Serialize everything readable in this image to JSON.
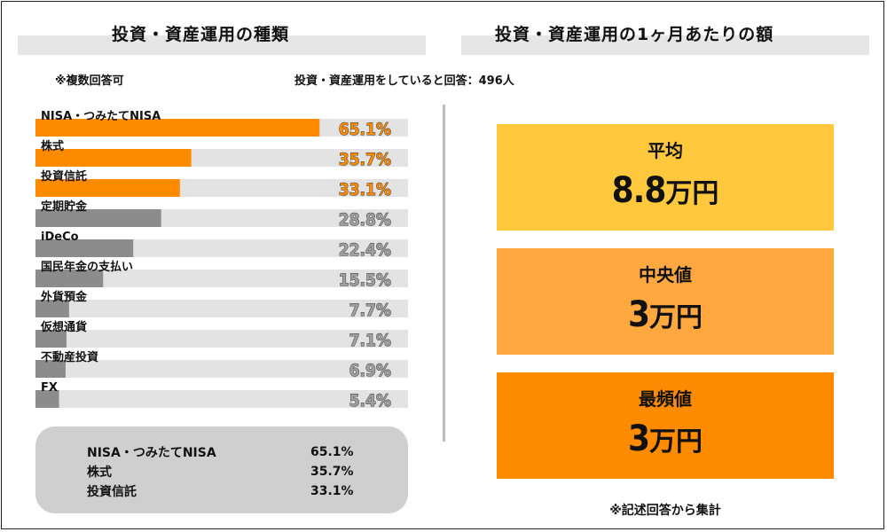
{
  "left_section": {
    "title": "投資・資産運用の種類"
  },
  "right_section": {
    "title": "投資・資産運用の1ヶ月あたりの額"
  },
  "notes": {
    "multiple_answers": "※複数回答可",
    "respondents": "投資・資産運用をしていると回答：496人",
    "footnote": "※記述回答から集計"
  },
  "colors": {
    "highlight_bar": "#ff8c00",
    "other_bar": "#8c8c8c",
    "track": "#e3e3e3",
    "highlight_value": "#ff8c00",
    "other_value": "#a0a0a0",
    "mean_box": "#ffc83d",
    "median_box": "#ffa840",
    "mode_box": "#ff8c00"
  },
  "chart_data": {
    "type": "bar",
    "orientation": "horizontal",
    "xlim": [
      0,
      100
    ],
    "categories": [
      "NISA・つみたてNISA",
      "株式",
      "投資信託",
      "定期貯金",
      "iDeCo",
      "国民年金の支払い",
      "外貨預金",
      "仮想通貨",
      "不動産投資",
      "FX"
    ],
    "values": [
      65.1,
      35.7,
      33.1,
      28.8,
      22.4,
      15.5,
      7.7,
      7.1,
      6.9,
      5.4
    ],
    "value_labels": [
      "65.1%",
      "35.7%",
      "33.1%",
      "28.8%",
      "22.4%",
      "15.5%",
      "7.7%",
      "7.1%",
      "6.9%",
      "5.4%"
    ],
    "highlight_top": 3
  },
  "summary": {
    "rows": [
      {
        "name": "NISA・つみたてNISA",
        "value": "65.1%"
      },
      {
        "name": "株式",
        "value": "35.7%"
      },
      {
        "name": "投資信託",
        "value": "33.1%"
      }
    ]
  },
  "stats": {
    "mean": {
      "label": "平均",
      "number": "8.8",
      "unit": "万円"
    },
    "median": {
      "label": "中央値",
      "number": "3",
      "unit": "万円"
    },
    "mode": {
      "label": "最頻値",
      "number": "3",
      "unit": "万円"
    }
  }
}
